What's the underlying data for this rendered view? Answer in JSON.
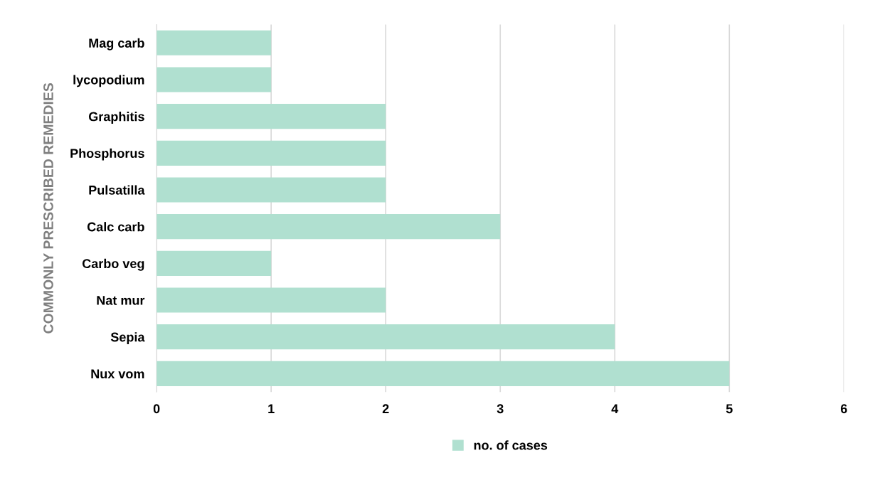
{
  "chart_data": {
    "type": "bar",
    "orientation": "horizontal",
    "ylabel": "COMMONLY PRESCRIBED REMEDIES",
    "categories": [
      "Mag carb",
      "lycopodium",
      "Graphitis",
      "Phosphorus",
      "Pulsatilla",
      "Calc carb",
      "Carbo veg",
      "Nat mur",
      "Sepia",
      "Nux vom"
    ],
    "series": [
      {
        "name": "no. of cases",
        "color": "#b0e0d0",
        "values": [
          1,
          1,
          2,
          2,
          2,
          3,
          1,
          2,
          4,
          5
        ]
      }
    ],
    "xlim": [
      0,
      6
    ],
    "xticks": [
      0,
      1,
      2,
      3,
      4,
      5,
      6
    ],
    "grid": "x",
    "legend": "bottom"
  }
}
